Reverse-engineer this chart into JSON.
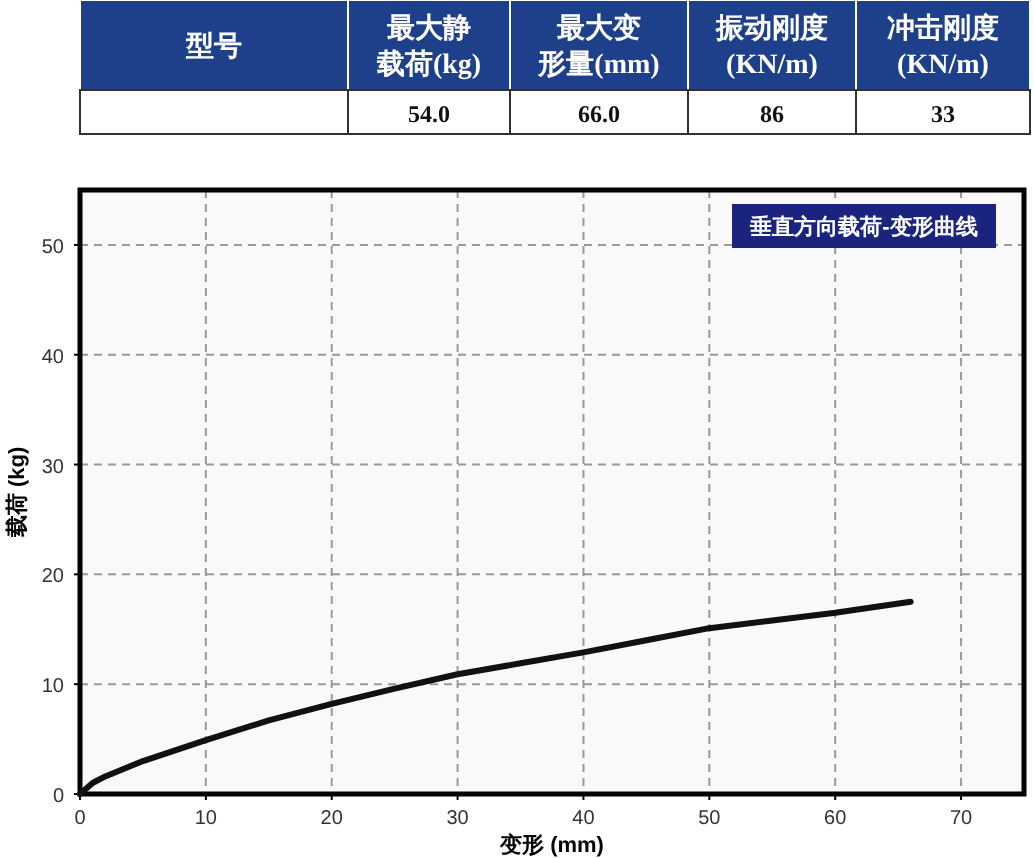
{
  "chart_data": [
    {
      "type": "other",
      "annotations": [
        "型号",
        "最大静",
        "载荷(kg)",
        "最大变",
        "形量(mm)",
        "振动刚度",
        "(KN/m)",
        "冲击刚度",
        "(KN/m)",
        null,
        "54.0",
        "66.0",
        "86",
        "33"
      ]
    },
    {
      "type": "line",
      "title": "垂直方向载荷-变形曲线",
      "xlabel": "变形 (mm)",
      "ylabel": "载荷 (kg)",
      "x": [
        0,
        1,
        2,
        5,
        10,
        15,
        20,
        25,
        30,
        35,
        40,
        45,
        50,
        55,
        60,
        66
      ],
      "series": [
        {
          "color": "#111111",
          "values": [
            0,
            1.0,
            1.6,
            3.0,
            4.9,
            6.7,
            8.2,
            9.6,
            10.9,
            11.9,
            12.9,
            14.0,
            15.1,
            15.8,
            16.5,
            17.5
          ]
        }
      ],
      "xlim": [
        0,
        75
      ],
      "ylim": [
        0,
        55
      ],
      "xticks": [
        0,
        10,
        20,
        30,
        40,
        50,
        60,
        70
      ],
      "yticks": [
        0,
        10,
        20,
        30,
        40,
        50
      ],
      "grid": true,
      "line_style": "solid"
    }
  ]
}
